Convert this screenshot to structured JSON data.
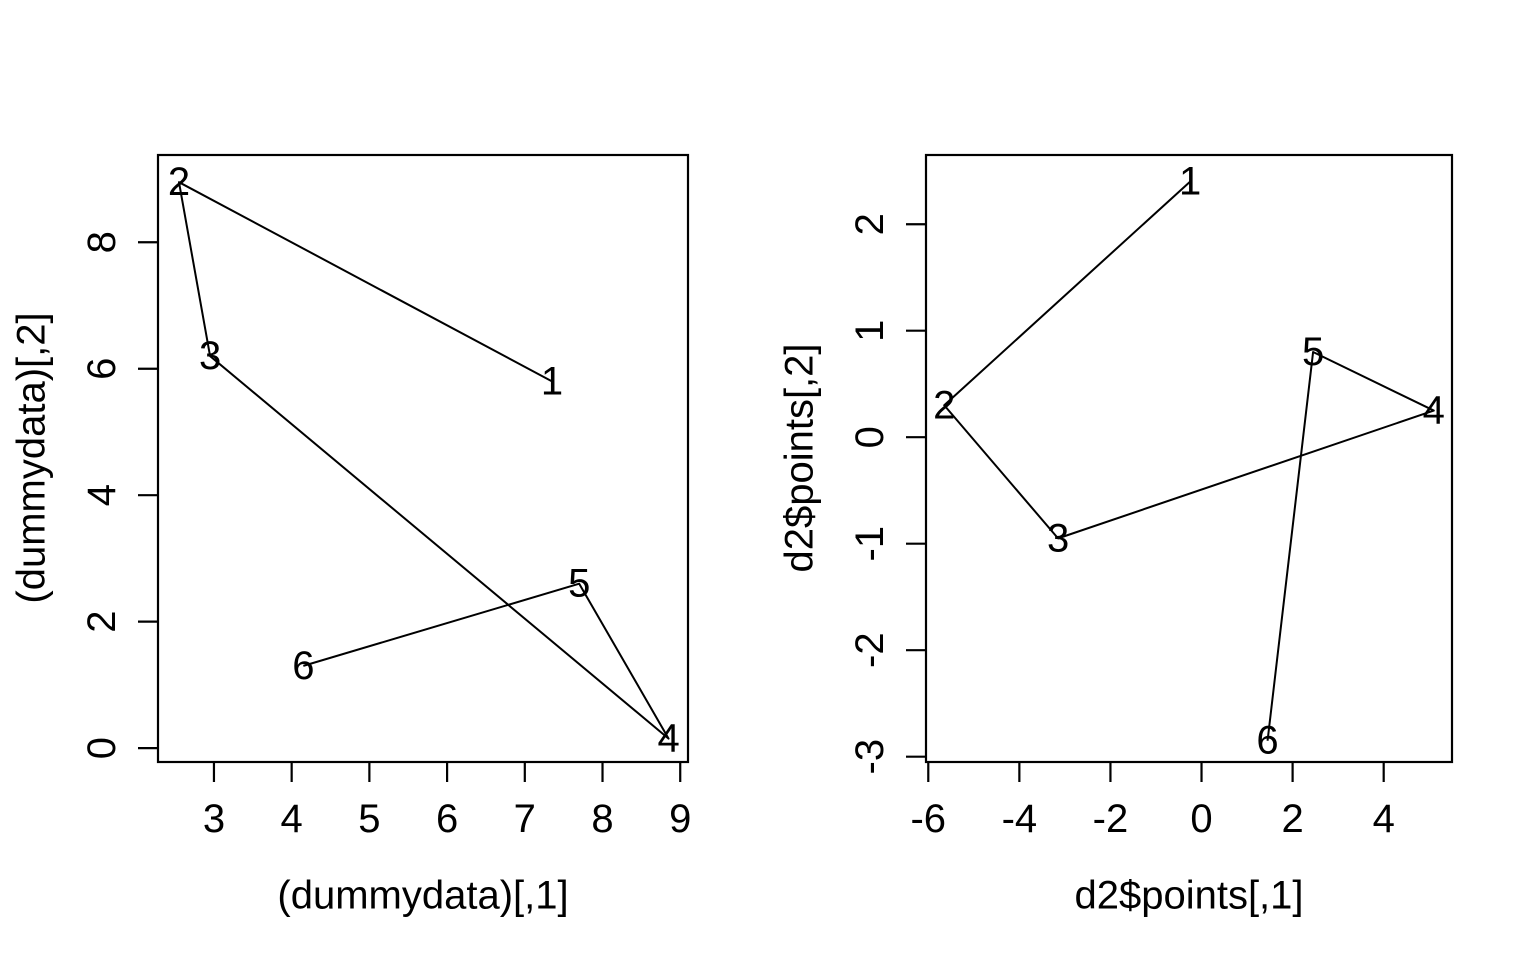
{
  "page": {
    "background": "#ffffff",
    "foreground": "#000000"
  },
  "chart_data": [
    {
      "type": "scatter",
      "panel": "left",
      "title": "",
      "xlabel": "(dummydata)[,1]",
      "ylabel": "(dummydata)[,2]",
      "xlim": [
        2.28,
        9.1
      ],
      "ylim": [
        -0.22,
        9.38
      ],
      "x_ticks": [
        3,
        4,
        5,
        6,
        7,
        8,
        9
      ],
      "y_ticks": [
        0,
        2,
        4,
        6,
        8
      ],
      "grid": false,
      "legend": "none",
      "line_type": "solid",
      "line_color": "#000000",
      "point_style": "numbered-text-labels",
      "connected_path_order": [
        "1",
        "2",
        "3",
        "4",
        "5",
        "6"
      ],
      "points": [
        {
          "label": "1",
          "x": 7.35,
          "y": 5.8
        },
        {
          "label": "2",
          "x": 2.55,
          "y": 8.95
        },
        {
          "label": "3",
          "x": 2.95,
          "y": 6.2
        },
        {
          "label": "4",
          "x": 8.85,
          "y": 0.15
        },
        {
          "label": "5",
          "x": 7.7,
          "y": 2.6
        },
        {
          "label": "6",
          "x": 4.15,
          "y": 1.3
        }
      ]
    },
    {
      "type": "scatter",
      "panel": "right",
      "title": "",
      "xlabel": "d2$points[,1]",
      "ylabel": "d2$points[,2]",
      "xlim": [
        -6.05,
        5.5
      ],
      "ylim": [
        -3.05,
        2.65
      ],
      "x_ticks": [
        -6,
        -4,
        -2,
        0,
        2,
        4
      ],
      "y_ticks": [
        -3,
        -2,
        -1,
        0,
        1,
        2
      ],
      "grid": false,
      "legend": "none",
      "line_type": "solid",
      "line_color": "#000000",
      "point_style": "numbered-text-labels",
      "connected_path_order": [
        "1",
        "2",
        "3",
        "4",
        "5",
        "6"
      ],
      "points": [
        {
          "label": "1",
          "x": -0.25,
          "y": 2.4
        },
        {
          "label": "2",
          "x": -5.65,
          "y": 0.3
        },
        {
          "label": "3",
          "x": -3.15,
          "y": -0.95
        },
        {
          "label": "4",
          "x": 5.1,
          "y": 0.25
        },
        {
          "label": "5",
          "x": 2.45,
          "y": 0.8
        },
        {
          "label": "6",
          "x": 1.45,
          "y": -2.85
        }
      ]
    }
  ]
}
